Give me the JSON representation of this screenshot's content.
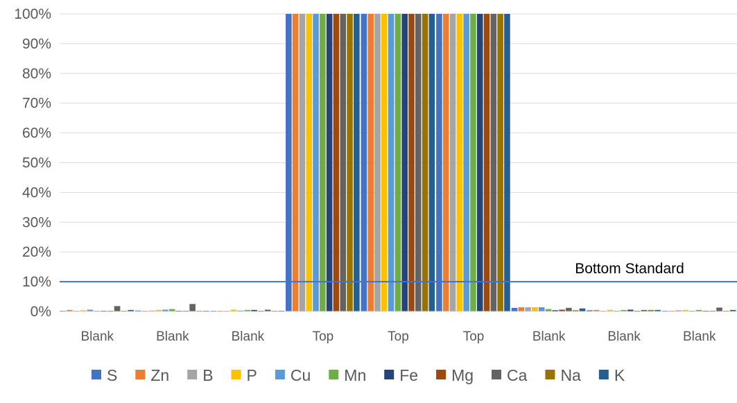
{
  "chart_data": {
    "type": "bar",
    "title": "",
    "xlabel": "",
    "ylabel": "",
    "ylim": [
      0,
      100
    ],
    "y_unit": "%",
    "y_ticks": [
      0,
      10,
      20,
      30,
      40,
      50,
      60,
      70,
      80,
      90,
      100
    ],
    "y_tick_labels": [
      "0%",
      "10%",
      "20%",
      "30%",
      "40%",
      "50%",
      "60%",
      "70%",
      "80%",
      "90%",
      "100%"
    ],
    "grid": true,
    "legend_position": "bottom",
    "categories": [
      "Blank",
      "Blank",
      "Blank",
      "Top",
      "Top",
      "Top",
      "Blank",
      "Blank",
      "Blank"
    ],
    "series": [
      {
        "name": "S",
        "color": "#4472C4",
        "values": [
          0.2,
          0.3,
          0.2,
          100,
          100,
          100,
          1.2,
          0.4,
          0.2
        ]
      },
      {
        "name": "Zn",
        "color": "#ED7D31",
        "values": [
          0.5,
          0.1,
          0.1,
          100,
          100,
          100,
          1.4,
          0.5,
          0.1
        ]
      },
      {
        "name": "B",
        "color": "#A5A5A5",
        "values": [
          0.1,
          0.3,
          0.2,
          100,
          100,
          100,
          1.4,
          0.2,
          0.4
        ]
      },
      {
        "name": "P",
        "color": "#FFC000",
        "values": [
          0.4,
          0.5,
          0.6,
          100,
          100,
          100,
          1.4,
          0.5,
          0.5
        ]
      },
      {
        "name": "Cu",
        "color": "#5B9BD5",
        "values": [
          0.6,
          0.6,
          0.3,
          100,
          100,
          100,
          1.4,
          0.1,
          0.1
        ]
      },
      {
        "name": "Mn",
        "color": "#70AD47",
        "values": [
          0.2,
          0.8,
          0.5,
          100,
          100,
          100,
          0.8,
          0.5,
          0.5
        ]
      },
      {
        "name": "Fe",
        "color": "#264478",
        "values": [
          0.1,
          0.1,
          0.5,
          100,
          100,
          100,
          0.4,
          0.6,
          0.1
        ]
      },
      {
        "name": "Mg",
        "color": "#9E480E",
        "values": [
          0.2,
          0.1,
          0.1,
          100,
          100,
          100,
          0.6,
          0.2,
          0.1
        ]
      },
      {
        "name": "Ca",
        "color": "#636363",
        "values": [
          1.8,
          2.5,
          0.6,
          100,
          100,
          100,
          1.2,
          0.5,
          1.3
        ]
      },
      {
        "name": "Na",
        "color": "#997300",
        "values": [
          0.2,
          0.1,
          0.1,
          100,
          100,
          100,
          0.4,
          0.5,
          0.1
        ]
      },
      {
        "name": "K",
        "color": "#255E91",
        "values": [
          0.5,
          0.1,
          0.1,
          100,
          100,
          100,
          1.0,
          0.5,
          0.5
        ]
      }
    ],
    "reference_line": {
      "label": "Bottom Standard",
      "value": 10,
      "color": "#4472C4"
    }
  }
}
